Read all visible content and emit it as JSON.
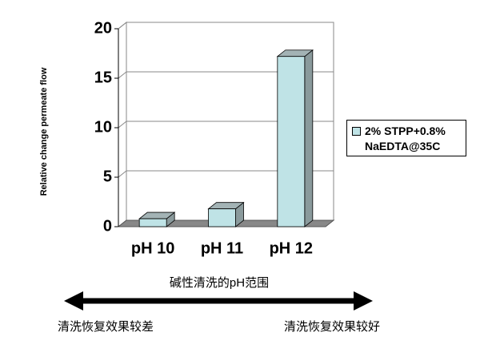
{
  "chart_data": {
    "type": "bar3d",
    "y_label": "Relative change permeate flow",
    "categories": [
      "pH 10",
      "pH 11",
      "pH 12"
    ],
    "series": [
      {
        "name": "2% STPP+0.8% NaEDTA@35C",
        "color": "#bfe3e6",
        "values": [
          0.8,
          1.8,
          17.2
        ]
      }
    ],
    "ylim": [
      0,
      20
    ],
    "yticks": [
      0,
      5,
      10,
      15,
      20
    ],
    "grid": true,
    "legend": "right",
    "annotations": [
      "碱性清洗的pH范围",
      "清洗恢复效果较差",
      "清洗恢复效果较好"
    ]
  }
}
